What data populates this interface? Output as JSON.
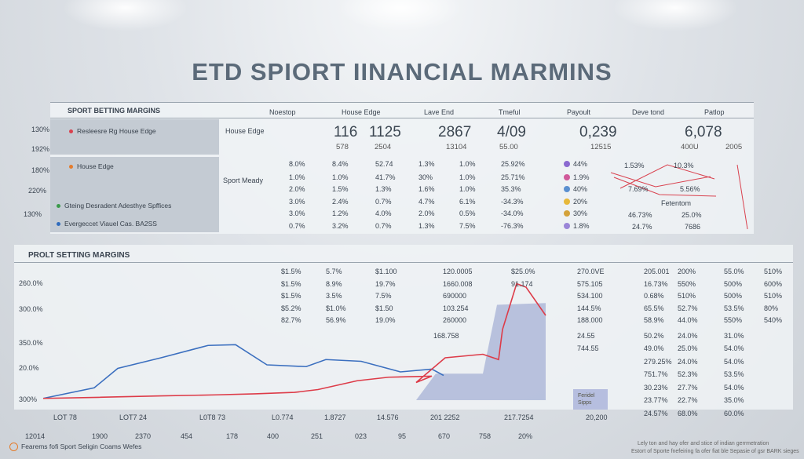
{
  "title": "ETD SPIORT IINANCIAL MARMINS",
  "top_table": {
    "heading": "SPORT BETTING MARGINS",
    "columns": [
      "Noestop",
      "House Edge",
      "Lave End",
      "Tmeful",
      "Payoult",
      "Deve tond",
      "Patlop"
    ],
    "left_axis": [
      "130%",
      "192%",
      "180%",
      "220%",
      "130%"
    ],
    "legend": [
      {
        "label": "Resleesre Rg House Edge",
        "color": "#d9414e"
      },
      {
        "label": "House Edge",
        "color": "#e47c2c"
      },
      {
        "label": "Gteing Desradent Adesthye Spffices",
        "color": "#3a9a4a"
      },
      {
        "label": "Evergeccet Viauel Cas. BA2SS",
        "color": "#2f6bbd"
      }
    ],
    "row_labels": [
      "House Edge",
      "Sport Meady"
    ],
    "big_values": [
      "116",
      "1125",
      "2867",
      "4/09",
      "0,239",
      "6,078"
    ],
    "sub_values": [
      "578",
      "2504",
      "13104",
      "55.00",
      "12515",
      "400U",
      "2005"
    ],
    "rows": [
      [
        "8.0%",
        "8.4%",
        "52.74",
        "1.3%",
        "1.0%",
        "25.92%",
        "44%"
      ],
      [
        "1.0%",
        "1.0%",
        "41.7%",
        "30%",
        "1.0%",
        "25.71%",
        "1.9%"
      ],
      [
        "2.0%",
        "1.5%",
        "1.3%",
        "1.6%",
        "1.0%",
        "35.3%",
        "40%"
      ],
      [
        "3.0%",
        "2.4%",
        "0.7%",
        "4.7%",
        "6.1%",
        "-34.3%",
        "20%"
      ],
      [
        "3.0%",
        "1.2%",
        "4.0%",
        "2.0%",
        "0.5%",
        "-34.0%",
        "30%"
      ],
      [
        "0.7%",
        "3.2%",
        "0.7%",
        "1.3%",
        "7.5%",
        "-76.3%",
        "1.8%"
      ]
    ],
    "right_notes": [
      "1.53%",
      "10.3%",
      "7.69%",
      "5.56%",
      "Fetentom",
      "46.73%",
      "25.0%",
      "24.7%",
      "7686"
    ]
  },
  "bottom_table": {
    "heading": "PROLT SETTING MARGINS",
    "col_a": [
      "$1.5%",
      "$1.5%",
      "$1.5%",
      "$5.2%",
      "82.7%"
    ],
    "col_b": [
      "5.7%",
      "8.9%",
      "3.5%",
      "$1.0%",
      "56.9%"
    ],
    "col_c": [
      "$1.100",
      "19.7%",
      "7.5%",
      "$1.50",
      "19.0%"
    ],
    "col_d": [
      "120.0005",
      "1660.008",
      "690000",
      "103.254",
      "260000",
      "168.758"
    ],
    "col_e": [
      "$25.0%",
      "91.174"
    ],
    "col_f": [
      "270.0VE",
      "575.105",
      "534.100",
      "144.5%",
      "188.000",
      "24.55",
      "744.55"
    ],
    "col_g": [
      "205.001",
      "16.73%",
      "0.68%",
      "65.5%",
      "58.9%",
      "50.2%",
      "49.0%",
      "279.25%",
      "751.7%",
      "30.23%",
      "23.77%",
      "24.57%"
    ],
    "col_h": [
      "200%",
      "550%",
      "510%",
      "52.7%",
      "44.0%",
      "24.0%",
      "25.0%",
      "24.0%",
      "52.3%",
      "27.7%",
      "22.7%",
      "68.0%"
    ],
    "col_i": [
      "55.0%",
      "500%",
      "500%",
      "53.5%",
      "550%",
      "31.0%",
      "54.0%",
      "54.0%",
      "53.5%",
      "54.0%",
      "35.0%",
      "60.0%"
    ],
    "col_j": [
      "510%",
      "600%",
      "510%",
      "80%",
      "540%"
    ],
    "x_row_labels": [
      "LOT 78",
      "LOT7 24",
      "L0T8 73",
      "L0.774",
      "1.8727",
      "14.576",
      "201 2252",
      "217.7254",
      "20,200"
    ],
    "bottom_ticks": [
      "12014",
      "1900",
      "2370",
      "454",
      "178",
      "400",
      "251",
      "023",
      "95",
      "670",
      "758",
      "20%"
    ],
    "note_box": "Feridel Sipps",
    "footer_left": "Fearems fofi Sport Seligin Coams Wefes",
    "footer_right_1": "Lely ton and hay ofer and stice of indian gerrmetration",
    "footer_right_2": "Estort of Sporte fnefeiring fa ofer fiat ble Sepasie of gsr BARK sieges"
  },
  "chart_data": {
    "type": "line",
    "ylabels": [
      "260.0%",
      "300.0%",
      "350.0%",
      "20.0%",
      "300%"
    ],
    "series": [
      {
        "color": "#3b6fbf",
        "values": [
          0.5,
          3.5,
          9.0,
          12.0,
          15.5,
          15.7,
          10.0,
          9.5,
          11.5,
          11.0,
          8.0,
          8.8,
          7.0
        ]
      },
      {
        "color": "#dd3b48",
        "values": [
          0.5,
          0.8,
          1.2,
          1.5,
          1.8,
          2.2,
          3.0,
          5.5,
          6.5,
          6.8,
          5.0,
          12.0,
          13.0,
          11.5,
          20.0,
          33.0,
          32.0,
          24.0
        ]
      },
      {
        "color": "#6a7ea8",
        "values": [
          0.0,
          0.0,
          0.0,
          0.0,
          0.0,
          0.0,
          0.0,
          0.0,
          0.0,
          0.0,
          0.0,
          0.0,
          0.0,
          7.5,
          7.5,
          27.0,
          27.5,
          15.0
        ]
      }
    ]
  }
}
